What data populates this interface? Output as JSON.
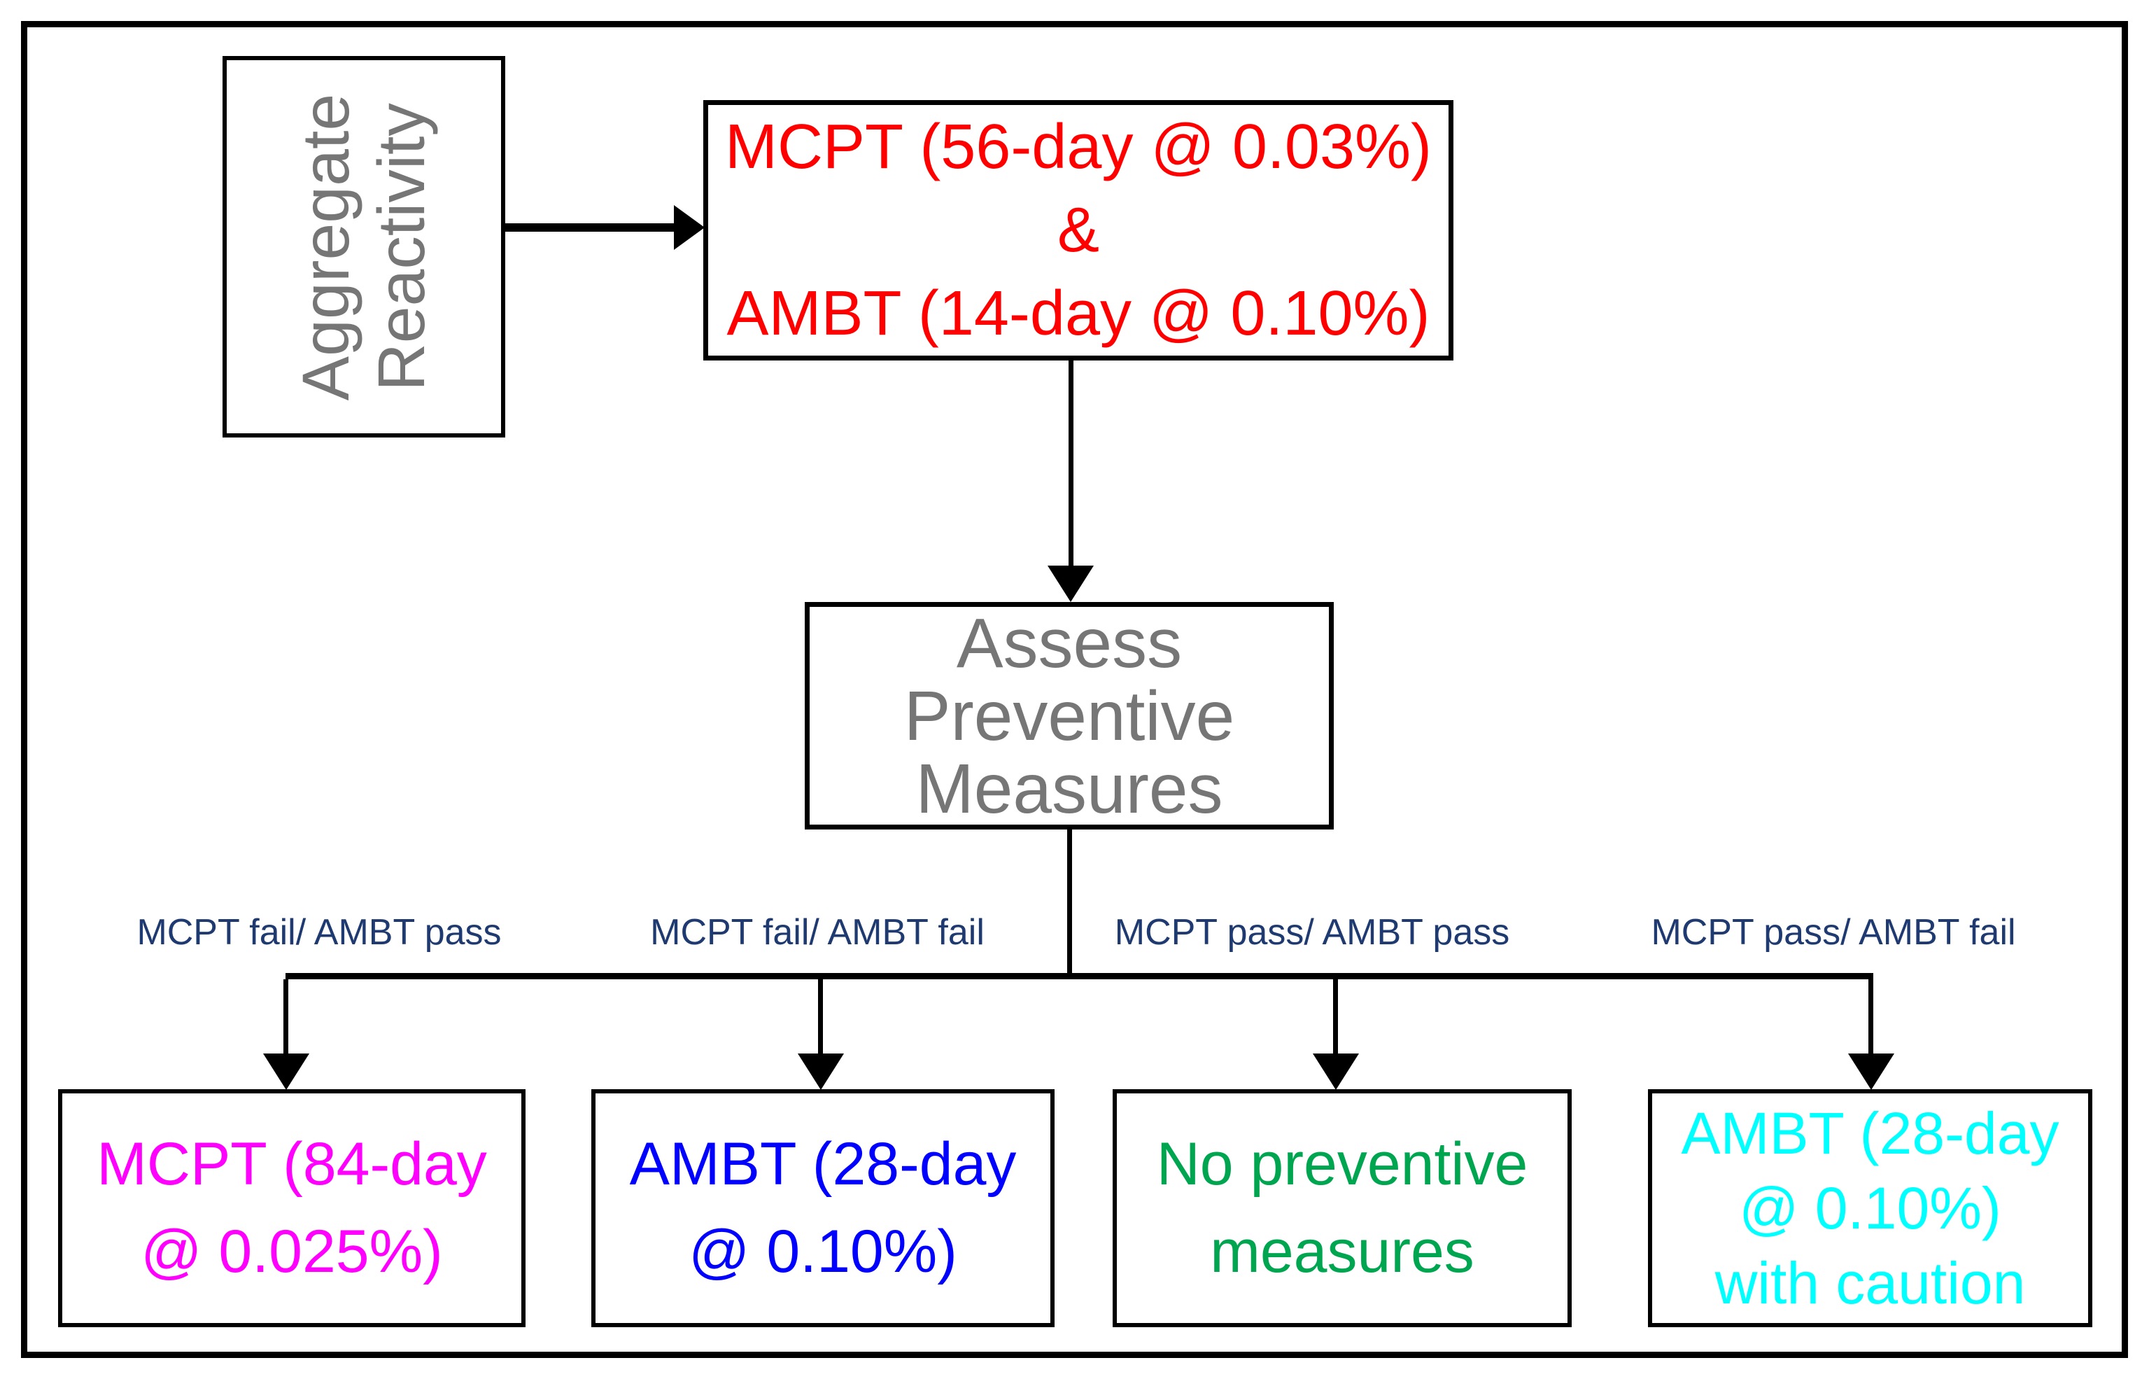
{
  "diagram_type": "flowchart",
  "nodes": {
    "aggregate": {
      "lines": [
        "Aggregate",
        "Reactivity"
      ],
      "text_color": "#767676"
    },
    "initial_tests": {
      "lines": [
        "MCPT (56-day @ 0.03%)",
        "&",
        "AMBT (14-day @ 0.10%)"
      ],
      "text_color": "#ff0000"
    },
    "assess": {
      "lines": [
        "Assess",
        "Preventive",
        "Measures"
      ],
      "text_color": "#767676"
    },
    "outcome_mcpt_84": {
      "lines": [
        "MCPT (84-day",
        "@ 0.025%)"
      ],
      "text_color": "#ff00ff"
    },
    "outcome_ambt_28": {
      "lines": [
        "AMBT (28-day",
        "@ 0.10%)"
      ],
      "text_color": "#0000ff"
    },
    "outcome_no_measures": {
      "lines": [
        "No preventive",
        "measures"
      ],
      "text_color": "#00a550"
    },
    "outcome_ambt_28_caution": {
      "lines": [
        "AMBT (28-day",
        "@ 0.10%)",
        "with caution"
      ],
      "text_color": "#00ffff"
    }
  },
  "branch_labels": [
    {
      "label": "MCPT fail/ AMBT pass"
    },
    {
      "label": "MCPT fail/ AMBT fail"
    },
    {
      "label": "MCPT pass/ AMBT pass"
    },
    {
      "label": "MCPT pass/ AMBT fail"
    }
  ],
  "colors": {
    "background": "#ffffff",
    "border_and_arrows": "#000000",
    "condition_label": "#1f3a70",
    "gray_text": "#767676",
    "red_text": "#ff0000",
    "magenta_text": "#ff00ff",
    "blue_text": "#0000ff",
    "green_text": "#00a550",
    "cyan_text": "#00ffff"
  }
}
